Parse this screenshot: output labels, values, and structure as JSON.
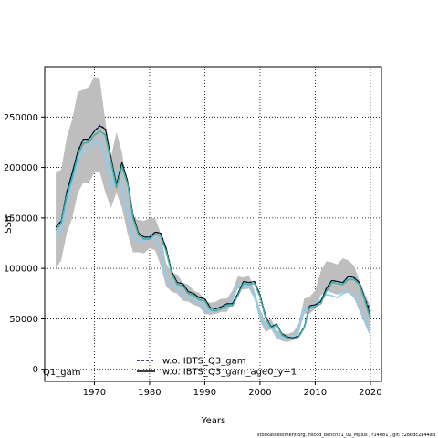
{
  "chart_data": {
    "type": "line",
    "title": "",
    "xlabel": "Years",
    "ylabel": "SSB",
    "xlim": [
      1961,
      2022
    ],
    "ylim": [
      -12000,
      300000
    ],
    "xticks": [
      1970,
      1980,
      1990,
      2000,
      2010,
      2020
    ],
    "yticks": [
      0,
      50000,
      100000,
      150000,
      200000,
      250000
    ],
    "grid": true,
    "legend_position": "bottom-center",
    "legend_prefix": "Q1_gam",
    "x": [
      1963,
      1964,
      1965,
      1966,
      1967,
      1968,
      1969,
      1970,
      1971,
      1972,
      1973,
      1974,
      1975,
      1976,
      1977,
      1978,
      1979,
      1980,
      1981,
      1982,
      1983,
      1984,
      1985,
      1986,
      1987,
      1988,
      1989,
      1990,
      1991,
      1992,
      1993,
      1994,
      1995,
      1996,
      1997,
      1998,
      1999,
      2000,
      2001,
      2002,
      2003,
      2004,
      2005,
      2006,
      2007,
      2008,
      2009,
      2010,
      2011,
      2012,
      2013,
      2014,
      2015,
      2016,
      2017,
      2018,
      2019,
      2020
    ],
    "band": {
      "color": "#bebebe",
      "upper": [
        195000,
        198000,
        230000,
        248000,
        275000,
        277000,
        280000,
        290000,
        287000,
        245000,
        210000,
        235000,
        215000,
        178000,
        150000,
        148000,
        147000,
        150000,
        150000,
        135000,
        105000,
        96000,
        94000,
        86000,
        84000,
        78000,
        76000,
        68000,
        66000,
        67000,
        70000,
        70000,
        78000,
        92000,
        91000,
        93000,
        78000,
        60000,
        47000,
        50000,
        39000,
        36000,
        35000,
        37000,
        45000,
        70000,
        72000,
        78000,
        97000,
        107000,
        106000,
        104000,
        110000,
        108000,
        103000,
        88000,
        75000,
        62000
      ],
      "lower": [
        100000,
        108000,
        135000,
        150000,
        175000,
        185000,
        185000,
        195000,
        195000,
        175000,
        160000,
        175000,
        160000,
        135000,
        116000,
        116000,
        115000,
        120000,
        118000,
        103000,
        82000,
        77000,
        75000,
        68000,
        67000,
        64000,
        62000,
        55000,
        54000,
        55000,
        57000,
        57000,
        66000,
        80000,
        79000,
        80000,
        70000,
        48000,
        37000,
        40000,
        31000,
        28000,
        27000,
        29000,
        35000,
        55000,
        55000,
        60000,
        73000,
        78000,
        76000,
        74000,
        76000,
        76000,
        71000,
        58000,
        45000,
        32000
      ]
    },
    "series": [
      {
        "name": "",
        "color": "#87cefa",
        "width": 1.6,
        "dash": "",
        "values": [
          131000,
          137000,
          160000,
          185000,
          205000,
          217000,
          218000,
          224000,
          226000,
          212000,
          180000,
          195000,
          182000,
          155000,
          131000,
          127000,
          126000,
          131000,
          131000,
          117000,
          91000,
          82000,
          80000,
          73000,
          72000,
          68000,
          66000,
          58000,
          57000,
          58000,
          61000,
          61000,
          69000,
          83000,
          82000,
          83000,
          72000,
          52000,
          40000,
          43000,
          34000,
          31000,
          30000,
          32000,
          39000,
          59000,
          60000,
          64000,
          69000,
          74000,
          73000,
          71000,
          75000,
          77000,
          73000,
          64000,
          50000,
          36000
        ]
      },
      {
        "name": "w.o. IBTS_Q3_gam",
        "color": "#00008b",
        "width": 1.2,
        "dash": "3,2",
        "values": [
          141000,
          147000,
          176000,
          195000,
          216000,
          228000,
          228000,
          236000,
          242000,
          238000,
          210000,
          183000,
          205000,
          187000,
          153000,
          135000,
          131000,
          131000,
          136000,
          135000,
          120000,
          97000,
          86000,
          85000,
          77000,
          75000,
          71000,
          70000,
          61000,
          60000,
          62000,
          65000,
          65000,
          75000,
          87000,
          86000,
          87000,
          74000,
          53000,
          42000,
          45000,
          35000,
          32000,
          31000,
          33000,
          42000,
          63000,
          64000,
          67000,
          80000,
          88000,
          87000,
          86000,
          92000,
          91000,
          86000,
          70000,
          58000
        ]
      },
      {
        "name": "w.o. IBTS_Q3_gam_age0_y+1",
        "color": "#000000",
        "width": 1.0,
        "dash": "",
        "values": [
          141000,
          147000,
          176000,
          195000,
          216000,
          228000,
          228000,
          236000,
          241000,
          238000,
          210000,
          183000,
          205000,
          187000,
          153000,
          135000,
          131000,
          131000,
          136000,
          135000,
          120000,
          97000,
          86000,
          85000,
          77000,
          75000,
          71000,
          70000,
          61000,
          60000,
          62000,
          65000,
          65000,
          75000,
          87000,
          86000,
          87000,
          74000,
          53000,
          42000,
          45000,
          35000,
          32000,
          31000,
          33000,
          42000,
          63000,
          64000,
          67000,
          80000,
          88000,
          87000,
          86000,
          92000,
          91000,
          86000,
          70000,
          53000
        ]
      },
      {
        "name": "",
        "color": "#3cb3a8",
        "width": 1.6,
        "dash": "",
        "values": [
          138000,
          145000,
          172000,
          190000,
          212000,
          224000,
          225000,
          232000,
          236000,
          232000,
          206000,
          180000,
          201000,
          184000,
          150000,
          133000,
          129000,
          129000,
          134000,
          132000,
          117000,
          95000,
          84000,
          83000,
          75000,
          73000,
          69000,
          68000,
          59000,
          58000,
          60000,
          63000,
          63000,
          73000,
          85000,
          84000,
          85000,
          72000,
          51000,
          41000,
          44000,
          34000,
          31000,
          30000,
          32000,
          41000,
          61000,
          62000,
          65000,
          77000,
          86000,
          85000,
          84000,
          89000,
          89000,
          84000,
          68000,
          50000
        ]
      }
    ]
  },
  "footer": "stockassessment.org, nscod_bench21_01_Mplus , r14081 , git: c28bdc2a44ad"
}
